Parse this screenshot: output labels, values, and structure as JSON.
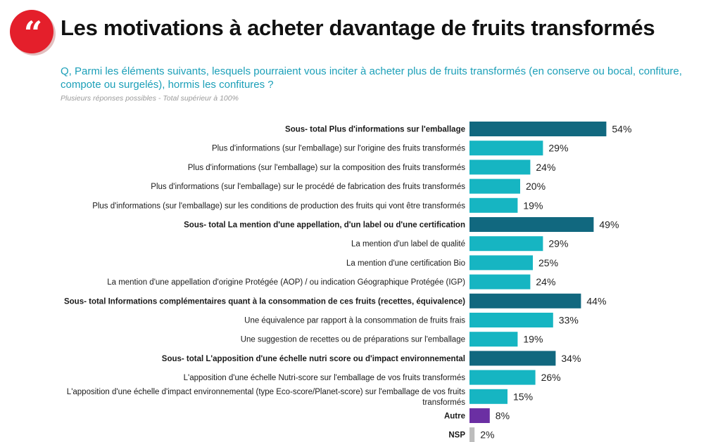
{
  "header": {
    "logo_glyph": "“",
    "title": "Les motivations à acheter davantage de fruits transformés",
    "question": "Q, Parmi les éléments suivants, lesquels pourraient vous inciter à acheter plus de fruits transformés (en conserve ou bocal, confiture, compote ou surgelés), hormis les confitures ?",
    "note": "Plusieurs réponses possibles - Total supérieur à 100%"
  },
  "colors": {
    "subtotal": "#11687f",
    "item": "#16b5c2",
    "other": "#6b2fa3",
    "nsp": "#bdbdbd",
    "logo": "#e41f2b",
    "question": "#1b9fb8"
  },
  "chart_data": {
    "type": "bar",
    "orientation": "horizontal",
    "title": "Les motivations à acheter davantage de fruits transformés",
    "unit": "%",
    "xlim": [
      0,
      60
    ],
    "rows": [
      {
        "label": [
          "Sous- total Plus d'informations sur l'emballage"
        ],
        "value": 54,
        "kind": "subtotal"
      },
      {
        "label": [
          "Plus d'informations (sur l'emballage) sur l'origine des fruits transformés"
        ],
        "value": 29,
        "kind": "item"
      },
      {
        "label": [
          "Plus d'informations (sur l'emballage) sur la composition des fruits transformés"
        ],
        "value": 24,
        "kind": "item"
      },
      {
        "label": [
          "Plus d'informations (sur l'emballage) sur le procédé de fabrication des fruits transformés"
        ],
        "value": 20,
        "kind": "item"
      },
      {
        "label": [
          "Plus d'informations (sur l'emballage) sur les conditions de production des fruits qui vont être transformés"
        ],
        "value": 19,
        "kind": "item"
      },
      {
        "label": [
          "Sous- total La mention d'une appellation, d'un label ou d'une certification"
        ],
        "value": 49,
        "kind": "subtotal"
      },
      {
        "label": [
          "La mention d'un label de qualité"
        ],
        "value": 29,
        "kind": "item"
      },
      {
        "label": [
          "La mention d'une certification Bio"
        ],
        "value": 25,
        "kind": "item"
      },
      {
        "label": [
          "La mention d'une appellation d'origine Protégée (AOP) / ou indication Géographique Protégée (IGP)"
        ],
        "value": 24,
        "kind": "item"
      },
      {
        "label": [
          "Sous- total Informations complémentaires quant à la consommation de ces fruits (recettes, équivalence)"
        ],
        "value": 44,
        "kind": "subtotal"
      },
      {
        "label": [
          "Une équivalence par rapport à la consommation de fruits frais"
        ],
        "value": 33,
        "kind": "item"
      },
      {
        "label": [
          "Une suggestion de recettes ou de préparations sur l'emballage"
        ],
        "value": 19,
        "kind": "item"
      },
      {
        "label": [
          "Sous- total L'apposition d'une échelle nutri score ou d'impact environnemental"
        ],
        "value": 34,
        "kind": "subtotal"
      },
      {
        "label": [
          "L'apposition d'une échelle Nutri-score sur l'emballage de vos fruits transformés"
        ],
        "value": 26,
        "kind": "item"
      },
      {
        "label": [
          "L'apposition d'une échelle d'impact environnemental (type Eco-score/Planet-score) sur l'emballage de vos fruits",
          "transformés"
        ],
        "value": 15,
        "kind": "item"
      },
      {
        "label": [
          "Autre"
        ],
        "value": 8,
        "kind": "other"
      },
      {
        "label": [
          "NSP"
        ],
        "value": 2,
        "kind": "nsp"
      }
    ]
  }
}
